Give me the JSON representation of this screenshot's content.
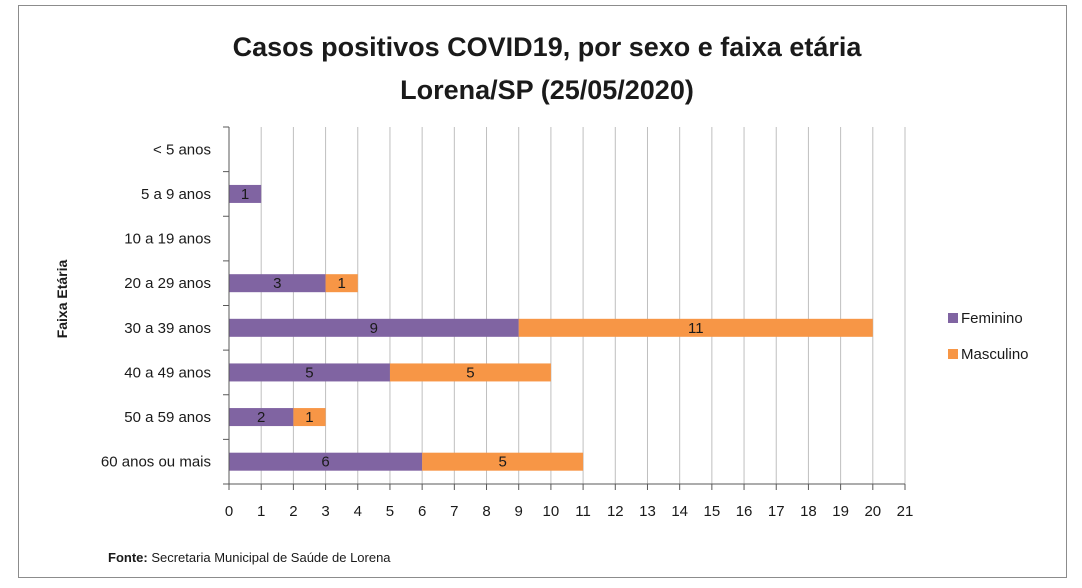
{
  "chart_data": {
    "type": "bar",
    "orientation": "horizontal",
    "stacked": true,
    "title": [
      "Casos positivos COVID19, por sexo e faixa etária",
      "Lorena/SP (25/05/2020)"
    ],
    "xlabel": "",
    "ylabel": "Faixa Etária",
    "categories": [
      "< 5 anos",
      "5 a 9 anos",
      "10 a 19 anos",
      "20 a 29 anos",
      "30 a 39 anos",
      "40 a 49 anos",
      "50 a 59 anos",
      "60 anos ou mais"
    ],
    "series": [
      {
        "name": "Feminino",
        "color": "#8064a2",
        "values": [
          0,
          1,
          0,
          3,
          9,
          5,
          2,
          6
        ]
      },
      {
        "name": "Masculino",
        "color": "#f79646",
        "values": [
          0,
          0,
          0,
          1,
          11,
          5,
          1,
          5
        ]
      }
    ],
    "xlim": [
      0,
      21
    ],
    "xticks": [
      0,
      1,
      2,
      3,
      4,
      5,
      6,
      7,
      8,
      9,
      10,
      11,
      12,
      13,
      14,
      15,
      16,
      17,
      18,
      19,
      20,
      21
    ],
    "grid": true,
    "legend_position": "right"
  },
  "footer": {
    "source_label": "Fonte:",
    "source_text": " Secretaria Municipal de Saúde de Lorena"
  }
}
